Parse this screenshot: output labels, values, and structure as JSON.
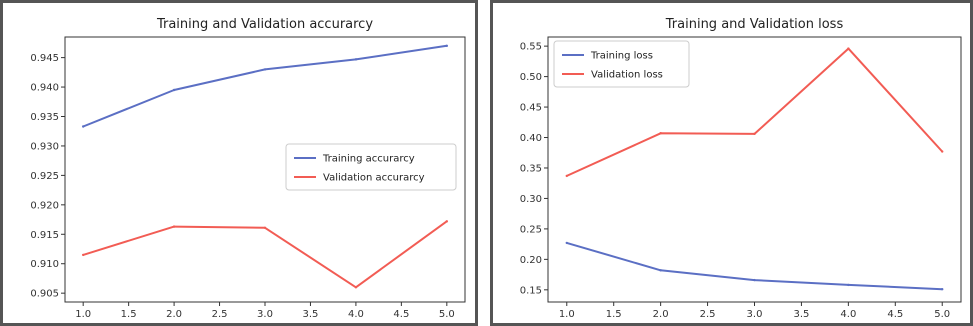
{
  "chart_data": [
    {
      "type": "line",
      "title": "Training and Validation accurarcy",
      "xlabel": "",
      "ylabel": "",
      "x": [
        1.0,
        2.0,
        3.0,
        4.0,
        5.0
      ],
      "xlim": [
        0.8,
        5.2
      ],
      "ylim": [
        0.9035,
        0.9485
      ],
      "xticks": [
        1.0,
        1.5,
        2.0,
        2.5,
        3.0,
        3.5,
        4.0,
        4.5,
        5.0
      ],
      "xtick_labels": [
        "1.0",
        "1.5",
        "2.0",
        "2.5",
        "3.0",
        "3.5",
        "4.0",
        "4.5",
        "5.0"
      ],
      "yticks": [
        0.905,
        0.91,
        0.915,
        0.92,
        0.925,
        0.93,
        0.935,
        0.94,
        0.945
      ],
      "ytick_labels": [
        "0.905",
        "0.910",
        "0.915",
        "0.920",
        "0.925",
        "0.930",
        "0.935",
        "0.940",
        "0.945"
      ],
      "grid": false,
      "legend_position": "center-right",
      "series": [
        {
          "name": "Training accurarcy",
          "color": "#5b6fc4",
          "values": [
            0.9333,
            0.9395,
            0.943,
            0.9447,
            0.947
          ]
        },
        {
          "name": "Validation accurarcy",
          "color": "#f25c54",
          "values": [
            0.9115,
            0.9163,
            0.9161,
            0.906,
            0.9172
          ]
        }
      ]
    },
    {
      "type": "line",
      "title": "Training and Validation loss",
      "xlabel": "",
      "ylabel": "",
      "x": [
        1.0,
        2.0,
        3.0,
        4.0,
        5.0
      ],
      "xlim": [
        0.8,
        5.2
      ],
      "ylim": [
        0.13,
        0.565
      ],
      "xticks": [
        1.0,
        1.5,
        2.0,
        2.5,
        3.0,
        3.5,
        4.0,
        4.5,
        5.0
      ],
      "xtick_labels": [
        "1.0",
        "1.5",
        "2.0",
        "2.5",
        "3.0",
        "3.5",
        "4.0",
        "4.5",
        "5.0"
      ],
      "yticks": [
        0.15,
        0.2,
        0.25,
        0.3,
        0.35,
        0.4,
        0.45,
        0.5,
        0.55
      ],
      "ytick_labels": [
        "0.15",
        "0.20",
        "0.25",
        "0.30",
        "0.35",
        "0.40",
        "0.45",
        "0.50",
        "0.55"
      ],
      "grid": false,
      "legend_position": "top-left",
      "series": [
        {
          "name": "Training loss",
          "color": "#5b6fc4",
          "values": [
            0.227,
            0.182,
            0.166,
            0.158,
            0.151
          ]
        },
        {
          "name": "Validation loss",
          "color": "#f25c54",
          "values": [
            0.337,
            0.407,
            0.406,
            0.546,
            0.377
          ]
        }
      ]
    }
  ]
}
